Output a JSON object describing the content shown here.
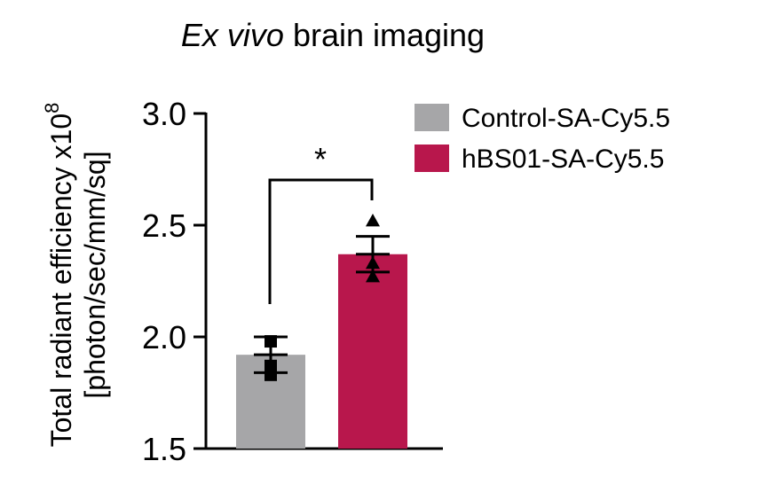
{
  "chart_data": {
    "type": "bar",
    "title": {
      "italic": "Ex vivo",
      "rest": " brain imaging"
    },
    "ylabel": {
      "line1": "Total radiant efficiency x10",
      "exponent": "8",
      "line2": "[photon/sec/mm/sq]"
    },
    "ylim": [
      1.5,
      3.0
    ],
    "yticks": [
      {
        "value": 1.5,
        "label": "1.5"
      },
      {
        "value": 2.0,
        "label": "2.0"
      },
      {
        "value": 2.5,
        "label": "2.5"
      },
      {
        "value": 3.0,
        "label": "3.0"
      }
    ],
    "categories": [
      "Control-SA-Cy5.5",
      "hBS01-SA-Cy5.5"
    ],
    "values": [
      1.92,
      2.37
    ],
    "sem": [
      0.08,
      0.08
    ],
    "points": [
      [
        1.98,
        1.87,
        1.83
      ],
      [
        2.52,
        2.33,
        2.27
      ]
    ],
    "markers": [
      "square",
      "triangle"
    ],
    "colors": [
      "#a6a6a8",
      "#b8174c"
    ],
    "significance": "*",
    "legend": [
      {
        "label": "Control-SA-Cy5.5",
        "color": "#a6a6a8"
      },
      {
        "label": "hBS01-SA-Cy5.5",
        "color": "#b8174c"
      }
    ],
    "legend_position": "top-right"
  }
}
